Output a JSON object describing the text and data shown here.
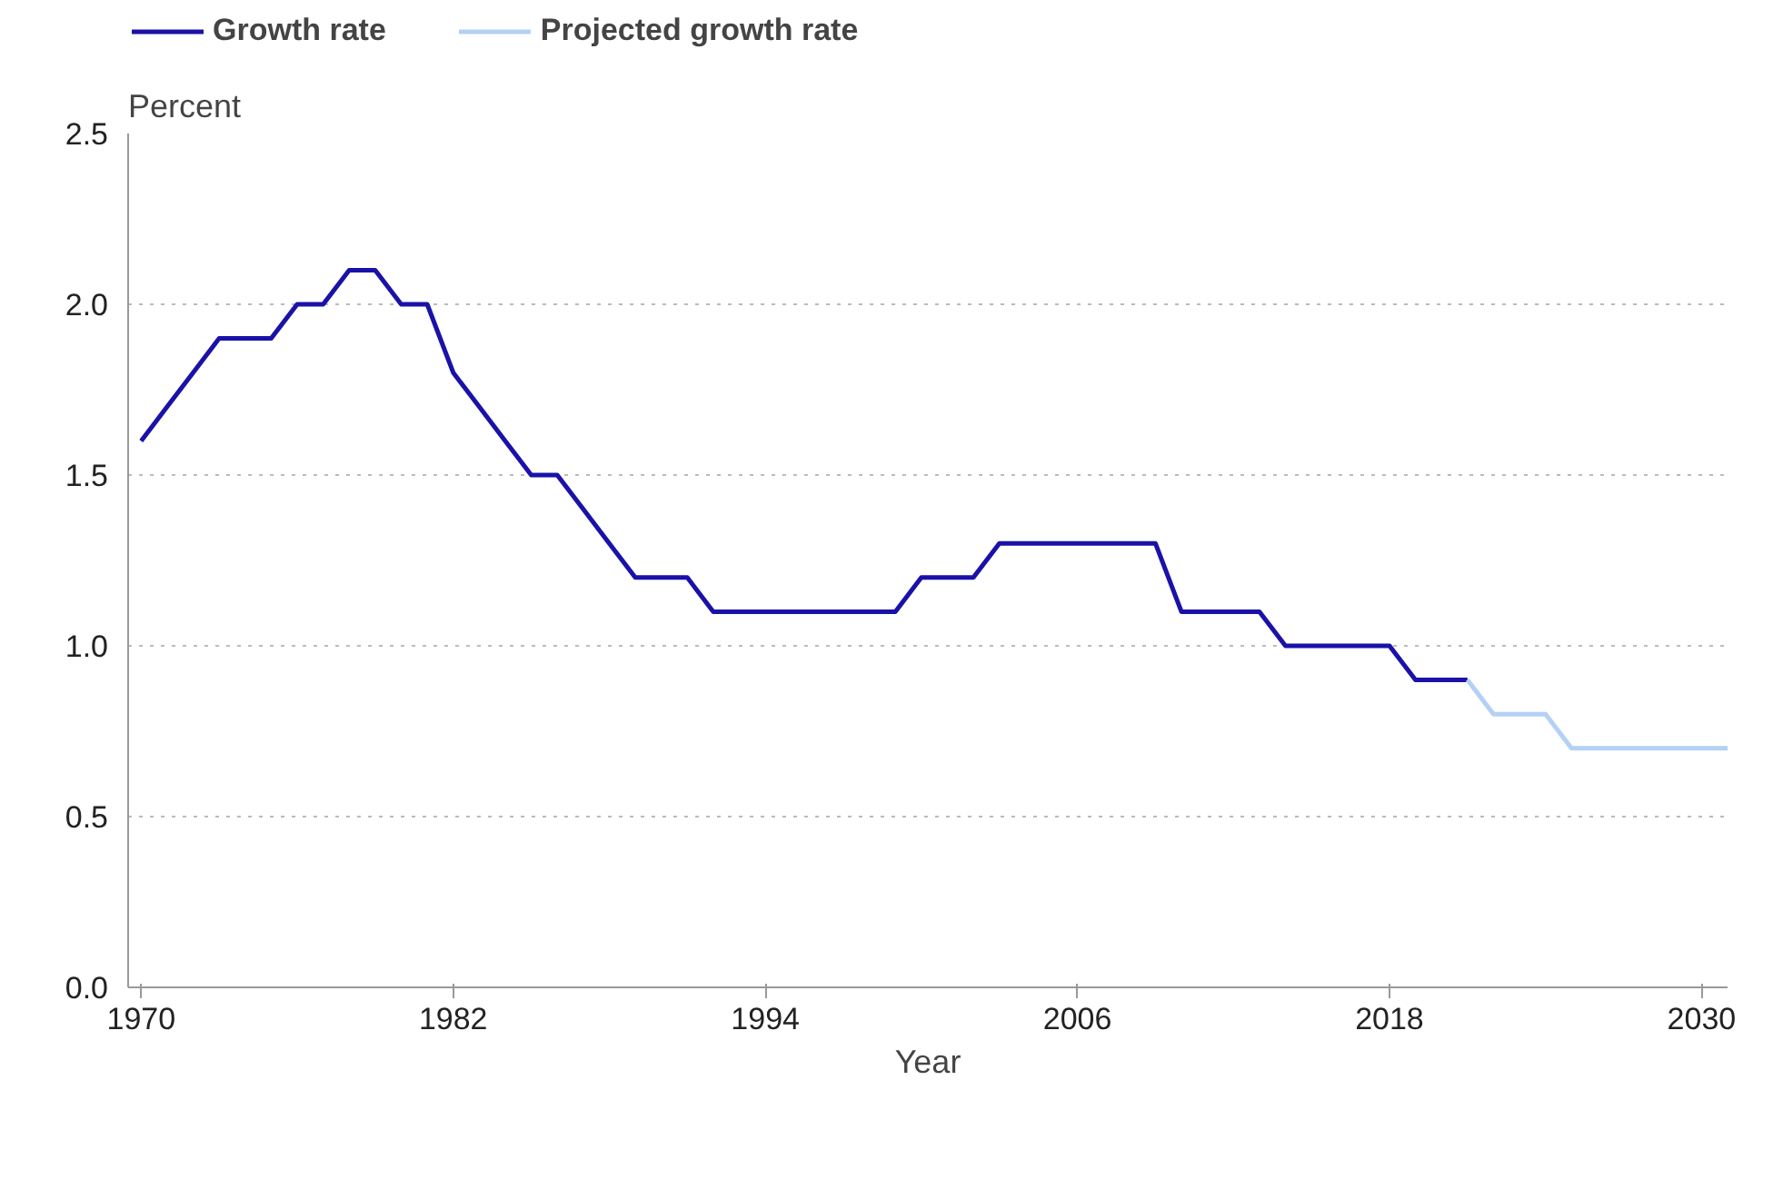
{
  "chart_data": {
    "type": "line",
    "xlabel": "Year",
    "ylabel": "Percent",
    "series": [
      {
        "name": "Growth rate",
        "color": "#1a12a8",
        "x": [
          1970,
          1971,
          1972,
          1973,
          1974,
          1975,
          1976,
          1977,
          1978,
          1979,
          1980,
          1981,
          1982,
          1983,
          1984,
          1985,
          1986,
          1987,
          1988,
          1989,
          1990,
          1991,
          1992,
          1993,
          1994,
          1995,
          1996,
          1997,
          1998,
          1999,
          2000,
          2001,
          2002,
          2003,
          2004,
          2005,
          2006,
          2007,
          2008,
          2009,
          2010,
          2011,
          2012,
          2013,
          2014,
          2015,
          2016,
          2017,
          2018,
          2019,
          2020,
          2021
        ],
        "values": [
          1.6,
          1.7,
          1.8,
          1.9,
          1.9,
          1.9,
          2.0,
          2.0,
          2.1,
          2.1,
          2.0,
          2.0,
          1.8,
          1.7,
          1.6,
          1.5,
          1.5,
          1.4,
          1.3,
          1.2,
          1.2,
          1.2,
          1.1,
          1.1,
          1.1,
          1.1,
          1.1,
          1.1,
          1.1,
          1.1,
          1.2,
          1.2,
          1.2,
          1.3,
          1.3,
          1.3,
          1.3,
          1.3,
          1.3,
          1.3,
          1.1,
          1.1,
          1.1,
          1.1,
          1.0,
          1.0,
          1.0,
          1.0,
          1.0,
          0.9,
          0.9,
          0.9
        ]
      },
      {
        "name": "Projected growth rate",
        "color": "#b3d1f5",
        "x": [
          2021,
          2022,
          2023,
          2024,
          2025,
          2026,
          2027,
          2028,
          2029,
          2030,
          2031
        ],
        "values": [
          0.9,
          0.8,
          0.8,
          0.8,
          0.7,
          0.7,
          0.7,
          0.7,
          0.7,
          0.7,
          0.7
        ]
      }
    ],
    "xlim": [
      1969.5,
      2031
    ],
    "xticks": [
      1970,
      1982,
      1994,
      2006,
      2018,
      2030
    ],
    "ylim": [
      0,
      2.5
    ],
    "yticks": [
      {
        "value": 0,
        "label": "0.0"
      },
      {
        "value": 0.5,
        "label": "0.5"
      },
      {
        "value": 1,
        "label": "1.0"
      },
      {
        "value": 1.5,
        "label": "1.5"
      },
      {
        "value": 2,
        "label": "2.0"
      },
      {
        "value": 2.5,
        "label": "2.5"
      }
    ],
    "grid": "y",
    "legend": "top",
    "line_style": "solid",
    "marker": "none"
  }
}
